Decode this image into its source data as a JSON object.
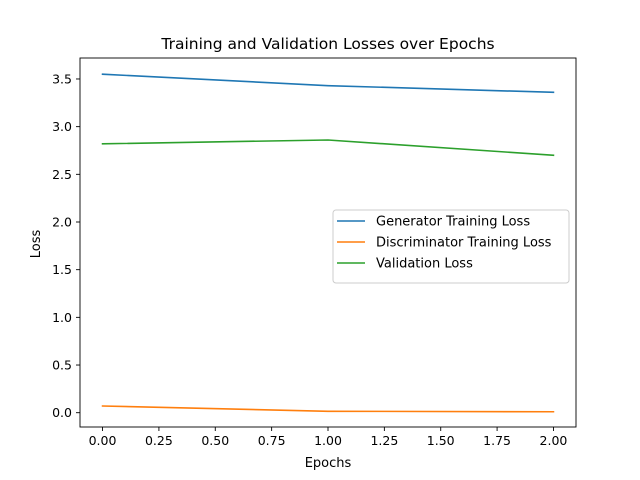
{
  "chart_data": {
    "type": "line",
    "title": "Training and Validation Losses over Epochs",
    "xlabel": "Epochs",
    "ylabel": "Loss",
    "xlim": [
      -0.1,
      2.1
    ],
    "ylim": [
      -0.15,
      3.72
    ],
    "xticks": [
      0.0,
      0.25,
      0.5,
      0.75,
      1.0,
      1.25,
      1.5,
      1.75,
      2.0
    ],
    "xtick_labels": [
      "0.00",
      "0.25",
      "0.50",
      "0.75",
      "1.00",
      "1.25",
      "1.50",
      "1.75",
      "2.00"
    ],
    "yticks": [
      0.0,
      0.5,
      1.0,
      1.5,
      2.0,
      2.5,
      3.0,
      3.5
    ],
    "ytick_labels": [
      "0.0",
      "0.5",
      "1.0",
      "1.5",
      "2.0",
      "2.5",
      "3.0",
      "3.5"
    ],
    "grid": false,
    "legend_position": "center-right",
    "x": [
      0,
      1,
      2
    ],
    "series": [
      {
        "name": "Generator Training Loss",
        "color": "#1f77b4",
        "values": [
          3.55,
          3.43,
          3.36
        ]
      },
      {
        "name": "Discriminator Training Loss",
        "color": "#ff7f0e",
        "values": [
          0.07,
          0.015,
          0.01
        ]
      },
      {
        "name": "Validation Loss",
        "color": "#2ca02c",
        "values": [
          2.82,
          2.86,
          2.7
        ]
      }
    ]
  }
}
